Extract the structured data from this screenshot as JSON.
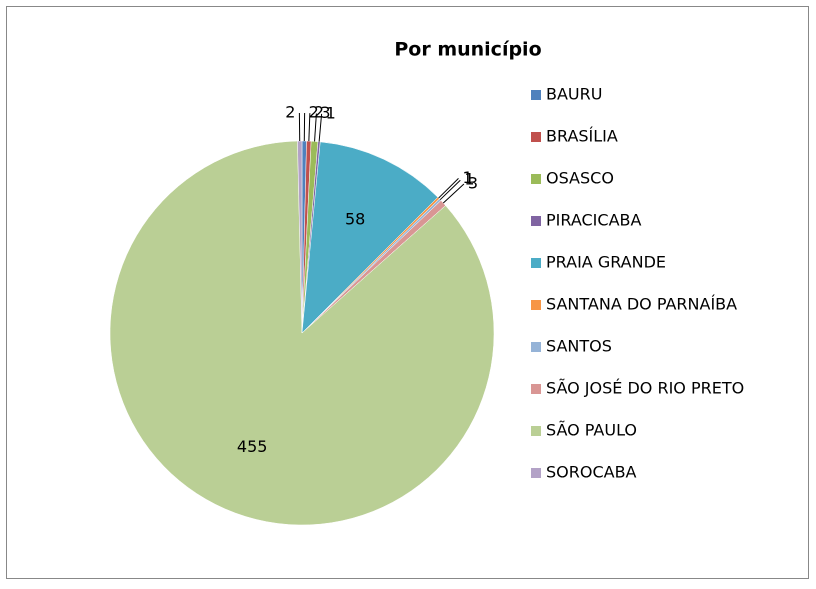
{
  "chart_data": {
    "type": "pie",
    "title": "Por município",
    "categories": [
      "BAURU",
      "BRASÍLIA",
      "OSASCO",
      "PIRACICABA",
      "PRAIA GRANDE",
      "SANTANA DO PARNAÍBA",
      "SANTOS",
      "SÃO JOSÉ DO RIO PRETO",
      "SÃO PAULO",
      "SOROCABA"
    ],
    "values": [
      2,
      2,
      3,
      1,
      58,
      1,
      1,
      3,
      455,
      2
    ],
    "colors": [
      "#4f81bd",
      "#c0504d",
      "#9bbb59",
      "#8064a2",
      "#4bacc6",
      "#f79646",
      "#95b3d7",
      "#d99694",
      "#bacf95",
      "#b3a2c7"
    ],
    "legend": "right"
  }
}
